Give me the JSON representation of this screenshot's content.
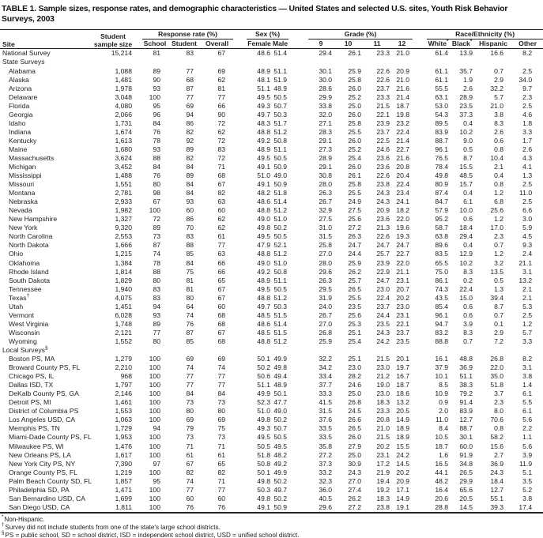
{
  "title": "TABLE 1. Sample sizes, response rates, and demographic characteristics — United States and selected U.S. sites, Youth Risk Behavior Surveys, 2003",
  "table": {
    "site_header": "Site",
    "sample_header": {
      "line1": "Student",
      "line2": "sample size"
    },
    "groups": {
      "response_rate": "Response rate (%)",
      "sex": "Sex (%)",
      "grade": "Grade (%)",
      "race": "Race/Ethnicity (%)"
    },
    "sub_headers": [
      {
        "label": "School"
      },
      {
        "label": "Student"
      },
      {
        "label": "Overall"
      },
      {
        "label": "Female"
      },
      {
        "label": "Male"
      },
      {
        "label": "9"
      },
      {
        "label": "10"
      },
      {
        "label": "11"
      },
      {
        "label": "12"
      },
      {
        "label": "White",
        "marker": "*"
      },
      {
        "label": "Black",
        "marker": "*"
      },
      {
        "label": "Hispanic"
      },
      {
        "label": "Other"
      }
    ],
    "rows": [
      {
        "site": "National Survey",
        "indent": false,
        "values": [
          "15,214",
          "81",
          "83",
          "67",
          "48.6",
          "51.4",
          "29.4",
          "26.1",
          "23.3",
          "21.0",
          "61.4",
          "13.9",
          "16.6",
          "8.2"
        ]
      },
      {
        "site": "State Surveys",
        "section": true
      },
      {
        "site": "Alabama",
        "indent": true,
        "values": [
          "1,088",
          "89",
          "77",
          "69",
          "48.9",
          "51.1",
          "30.1",
          "25.9",
          "22.6",
          "20.9",
          "61.1",
          "35.7",
          "0.7",
          "2.5"
        ]
      },
      {
        "site": "Alaska",
        "indent": true,
        "values": [
          "1,481",
          "90",
          "68",
          "62",
          "48.1",
          "51.9",
          "30.0",
          "25.8",
          "22.6",
          "21.0",
          "61.1",
          "1.9",
          "2.9",
          "34.0"
        ]
      },
      {
        "site": "Arizona",
        "indent": true,
        "values": [
          "1,978",
          "93",
          "87",
          "81",
          "51.1",
          "48.9",
          "28.6",
          "26.0",
          "23.7",
          "21.6",
          "55.5",
          "2.6",
          "32.2",
          "9.7"
        ]
      },
      {
        "site": "Delaware",
        "indent": true,
        "values": [
          "3,048",
          "100",
          "77",
          "77",
          "49.5",
          "50.5",
          "29.9",
          "25.2",
          "23.3",
          "21.4",
          "63.1",
          "28.9",
          "5.7",
          "2.3"
        ]
      },
      {
        "site": "Florida",
        "indent": true,
        "values": [
          "4,080",
          "95",
          "69",
          "66",
          "49.3",
          "50.7",
          "33.8",
          "25.0",
          "21.5",
          "18.7",
          "53.0",
          "23.5",
          "21.0",
          "2.5"
        ]
      },
      {
        "site": "Georgia",
        "indent": true,
        "values": [
          "2,066",
          "96",
          "94",
          "90",
          "49.7",
          "50.3",
          "32.0",
          "26.0",
          "22.1",
          "19.8",
          "54.3",
          "37.3",
          "3.8",
          "4.6"
        ]
      },
      {
        "site": "Idaho",
        "indent": true,
        "values": [
          "1,731",
          "84",
          "86",
          "72",
          "48.3",
          "51.7",
          "27.1",
          "25.8",
          "23.9",
          "23.2",
          "89.5",
          "0.4",
          "8.3",
          "1.8"
        ]
      },
      {
        "site": "Indiana",
        "indent": true,
        "values": [
          "1,674",
          "76",
          "82",
          "62",
          "48.8",
          "51.2",
          "28.3",
          "25.5",
          "23.7",
          "22.4",
          "83.9",
          "10.2",
          "2.6",
          "3.3"
        ]
      },
      {
        "site": "Kentucky",
        "indent": true,
        "values": [
          "1,613",
          "78",
          "92",
          "72",
          "49.2",
          "50.8",
          "29.1",
          "26.0",
          "22.5",
          "21.4",
          "88.7",
          "9.0",
          "0.6",
          "1.7"
        ]
      },
      {
        "site": "Maine",
        "indent": true,
        "values": [
          "1,680",
          "93",
          "89",
          "83",
          "48.9",
          "51.1",
          "27.3",
          "25.2",
          "24.6",
          "22.7",
          "96.1",
          "0.5",
          "0.8",
          "2.6"
        ]
      },
      {
        "site": "Massachusetts",
        "indent": true,
        "values": [
          "3,624",
          "88",
          "82",
          "72",
          "49.5",
          "50.5",
          "28.9",
          "25.4",
          "23.6",
          "21.6",
          "76.5",
          "8.7",
          "10.4",
          "4.3"
        ]
      },
      {
        "site": "Michigan",
        "indent": true,
        "values": [
          "3,452",
          "84",
          "84",
          "71",
          "49.1",
          "50.9",
          "29.1",
          "26.0",
          "23.6",
          "20.8",
          "78.4",
          "15.5",
          "2.1",
          "4.1"
        ]
      },
      {
        "site": "Mississippi",
        "indent": true,
        "values": [
          "1,488",
          "76",
          "89",
          "68",
          "51.0",
          "49.0",
          "30.8",
          "26.1",
          "22.6",
          "20.4",
          "49.8",
          "48.5",
          "0.4",
          "1.3"
        ]
      },
      {
        "site": "Missouri",
        "indent": true,
        "values": [
          "1,551",
          "80",
          "84",
          "67",
          "49.1",
          "50.9",
          "28.0",
          "25.8",
          "23.8",
          "22.4",
          "80.9",
          "15.7",
          "0.8",
          "2.5"
        ]
      },
      {
        "site": "Montana",
        "indent": true,
        "values": [
          "2,781",
          "98",
          "84",
          "82",
          "48.2",
          "51.8",
          "26.3",
          "25.5",
          "24.3",
          "23.4",
          "87.4",
          "0.4",
          "1.2",
          "11.0"
        ]
      },
      {
        "site": "Nebraska",
        "indent": true,
        "values": [
          "2,933",
          "67",
          "93",
          "63",
          "48.6",
          "51.4",
          "26.7",
          "24.9",
          "24.3",
          "24.1",
          "84.7",
          "6.1",
          "6.8",
          "2.5"
        ]
      },
      {
        "site": "Nevada",
        "indent": true,
        "values": [
          "1,982",
          "100",
          "60",
          "60",
          "48.8",
          "51.2",
          "32.9",
          "27.5",
          "20.9",
          "18.2",
          "57.9",
          "10.0",
          "25.6",
          "6.6"
        ]
      },
      {
        "site": "New Hampshire",
        "indent": true,
        "values": [
          "1,327",
          "72",
          "86",
          "62",
          "49.0",
          "51.0",
          "27.5",
          "25.6",
          "23.6",
          "22.0",
          "95.2",
          "0.6",
          "1.2",
          "3.0"
        ]
      },
      {
        "site": "New York",
        "indent": true,
        "values": [
          "9,320",
          "89",
          "70",
          "62",
          "49.8",
          "50.2",
          "31.0",
          "27.2",
          "21.3",
          "19.6",
          "58.7",
          "18.4",
          "17.0",
          "5.9"
        ]
      },
      {
        "site": "North Carolina",
        "indent": true,
        "values": [
          "2,553",
          "73",
          "83",
          "61",
          "49.5",
          "50.5",
          "31.5",
          "26.3",
          "22.6",
          "19.3",
          "63.8",
          "29.4",
          "2.3",
          "4.5"
        ]
      },
      {
        "site": "North Dakota",
        "indent": true,
        "values": [
          "1,666",
          "87",
          "88",
          "77",
          "47.9",
          "52.1",
          "25.8",
          "24.7",
          "24.7",
          "24.7",
          "89.6",
          "0.4",
          "0.7",
          "9.3"
        ]
      },
      {
        "site": "Ohio",
        "indent": true,
        "values": [
          "1,215",
          "74",
          "85",
          "63",
          "48.8",
          "51.2",
          "27.0",
          "24.4",
          "25.7",
          "22.7",
          "83.5",
          "12.9",
          "1.2",
          "2.4"
        ]
      },
      {
        "site": "Oklahoma",
        "indent": true,
        "values": [
          "1,384",
          "78",
          "84",
          "66",
          "49.0",
          "51.0",
          "28.0",
          "25.9",
          "23.9",
          "22.0",
          "65.5",
          "10.2",
          "3.2",
          "21.1"
        ]
      },
      {
        "site": "Rhode Island",
        "indent": true,
        "values": [
          "1,814",
          "88",
          "75",
          "66",
          "49.2",
          "50.8",
          "29.6",
          "26.2",
          "22.9",
          "21.1",
          "75.0",
          "8.3",
          "13.5",
          "3.1"
        ]
      },
      {
        "site": "South Dakota",
        "indent": true,
        "values": [
          "1,829",
          "80",
          "81",
          "65",
          "48.9",
          "51.1",
          "26.3",
          "25.7",
          "24.7",
          "23.1",
          "86.1",
          "0.2",
          "0.5",
          "13.2"
        ]
      },
      {
        "site": "Tennessee",
        "indent": true,
        "values": [
          "1,940",
          "83",
          "81",
          "67",
          "49.5",
          "50.5",
          "29.5",
          "26.5",
          "23.0",
          "20.7",
          "74.3",
          "22.4",
          "1.3",
          "2.1"
        ]
      },
      {
        "site": "Texas",
        "marker": "†",
        "indent": true,
        "values": [
          "4,075",
          "83",
          "80",
          "67",
          "48.8",
          "51.2",
          "31.9",
          "25.5",
          "22.4",
          "20.2",
          "43.5",
          "15.0",
          "39.4",
          "2.1"
        ]
      },
      {
        "site": "Utah",
        "indent": true,
        "values": [
          "1,451",
          "94",
          "64",
          "60",
          "49.7",
          "50.3",
          "24.0",
          "23.5",
          "23.7",
          "23.0",
          "85.4",
          "0.6",
          "8.7",
          "5.3"
        ]
      },
      {
        "site": "Vermont",
        "indent": true,
        "values": [
          "6,028",
          "93",
          "74",
          "68",
          "48.5",
          "51.5",
          "26.7",
          "25.6",
          "24.4",
          "23.1",
          "96.1",
          "0.6",
          "0.7",
          "2.5"
        ]
      },
      {
        "site": "West Virginia",
        "indent": true,
        "values": [
          "1,748",
          "89",
          "76",
          "68",
          "48.6",
          "51.4",
          "27.0",
          "25.3",
          "23.5",
          "22.1",
          "94.7",
          "3.9",
          "0.1",
          "1.2"
        ]
      },
      {
        "site": "Wisconsin",
        "indent": true,
        "values": [
          "2,121",
          "77",
          "87",
          "67",
          "48.5",
          "51.5",
          "26.8",
          "25.1",
          "24.3",
          "23.7",
          "83.2",
          "8.3",
          "2.9",
          "5.7"
        ]
      },
      {
        "site": "Wyoming",
        "indent": true,
        "values": [
          "1,552",
          "80",
          "85",
          "68",
          "48.8",
          "51.2",
          "25.9",
          "25.4",
          "24.2",
          "23.5",
          "88.8",
          "0.7",
          "7.2",
          "3.3"
        ]
      },
      {
        "site": "Local Surveys",
        "marker": "§",
        "section": true
      },
      {
        "site": "Boston PS, MA",
        "indent": true,
        "values": [
          "1,279",
          "100",
          "69",
          "69",
          "50.1",
          "49.9",
          "32.2",
          "25.1",
          "21.5",
          "20.1",
          "16.1",
          "48.8",
          "26.8",
          "8.2"
        ]
      },
      {
        "site": "Broward County PS, FL",
        "indent": true,
        "values": [
          "2,210",
          "100",
          "74",
          "74",
          "50.2",
          "49.8",
          "34.2",
          "23.0",
          "23.0",
          "19.7",
          "37.9",
          "36.9",
          "22.0",
          "3.1"
        ]
      },
      {
        "site": "Chicago PS, IL",
        "indent": true,
        "values": [
          "968",
          "100",
          "77",
          "77",
          "50.6",
          "49.4",
          "33.4",
          "28.2",
          "21.2",
          "16.7",
          "10.1",
          "51.1",
          "35.0",
          "3.8"
        ]
      },
      {
        "site": "Dallas ISD, TX",
        "indent": true,
        "values": [
          "1,797",
          "100",
          "77",
          "77",
          "51.1",
          "48.9",
          "37.7",
          "24.6",
          "19.0",
          "18.7",
          "8.5",
          "38.3",
          "51.8",
          "1.4"
        ]
      },
      {
        "site": "DeKalb County PS, GA",
        "indent": true,
        "values": [
          "2,146",
          "100",
          "84",
          "84",
          "49.9",
          "50.1",
          "33.3",
          "25.0",
          "23.0",
          "18.6",
          "10.9",
          "79.2",
          "3.7",
          "6.1"
        ]
      },
      {
        "site": "Detroit PS, MI",
        "indent": true,
        "values": [
          "1,461",
          "100",
          "73",
          "73",
          "52.3",
          "47.7",
          "41.5",
          "26.8",
          "18.3",
          "13.2",
          "0.9",
          "91.4",
          "2.3",
          "5.5"
        ]
      },
      {
        "site": "District of Columbia PS",
        "indent": true,
        "values": [
          "1,553",
          "100",
          "80",
          "80",
          "51.0",
          "49.0",
          "31.5",
          "24.5",
          "23.3",
          "20.5",
          "2.0",
          "83.9",
          "8.0",
          "6.1"
        ]
      },
      {
        "site": "Los Angeles USD, CA",
        "indent": true,
        "values": [
          "1,063",
          "100",
          "69",
          "69",
          "49.8",
          "50.2",
          "37.6",
          "26.6",
          "20.8",
          "14.9",
          "11.0",
          "12.7",
          "70.6",
          "5.6"
        ]
      },
      {
        "site": "Memphis PS, TN",
        "indent": true,
        "values": [
          "1,729",
          "94",
          "79",
          "75",
          "49.3",
          "50.7",
          "33.5",
          "26.5",
          "21.0",
          "18.9",
          "8.4",
          "88.7",
          "0.8",
          "2.2"
        ]
      },
      {
        "site": "Miami-Dade County PS, FL",
        "indent": true,
        "values": [
          "1,953",
          "100",
          "73",
          "73",
          "49.5",
          "50.5",
          "33.5",
          "26.0",
          "21.5",
          "18.9",
          "10.5",
          "30.1",
          "58.2",
          "1.1"
        ]
      },
      {
        "site": "Milwaukee PS, WI",
        "indent": true,
        "values": [
          "1,476",
          "100",
          "71",
          "71",
          "50.5",
          "49.5",
          "35.8",
          "27.9",
          "20.2",
          "15.5",
          "18.7",
          "60.0",
          "15.6",
          "5.6"
        ]
      },
      {
        "site": "New Orleans PS, LA",
        "indent": true,
        "values": [
          "1,617",
          "100",
          "61",
          "61",
          "51.8",
          "48.2",
          "27.2",
          "25.0",
          "23.1",
          "24.2",
          "1.6",
          "91.9",
          "2.7",
          "3.9"
        ]
      },
      {
        "site": "New York City PS, NY",
        "indent": true,
        "values": [
          "7,390",
          "97",
          "67",
          "65",
          "50.8",
          "49.2",
          "37.3",
          "30.9",
          "17.2",
          "14.5",
          "16.5",
          "34.8",
          "36.9",
          "11.9"
        ]
      },
      {
        "site": "Orange County PS, FL",
        "indent": true,
        "values": [
          "1,219",
          "100",
          "82",
          "82",
          "50.1",
          "49.9",
          "33.2",
          "24.3",
          "21.9",
          "20.2",
          "44.1",
          "26.5",
          "24.3",
          "5.1"
        ]
      },
      {
        "site": "Palm Beach County SD, FL",
        "indent": true,
        "values": [
          "1,857",
          "95",
          "74",
          "71",
          "49.8",
          "50.2",
          "32.3",
          "27.0",
          "19.4",
          "20.9",
          "48.2",
          "29.9",
          "18.4",
          "3.5"
        ]
      },
      {
        "site": "Philadelphia SD, PA",
        "indent": true,
        "values": [
          "1,471",
          "100",
          "77",
          "77",
          "50.3",
          "49.7",
          "36.0",
          "27.4",
          "19.2",
          "17.1",
          "16.4",
          "65.6",
          "12.7",
          "5.2"
        ]
      },
      {
        "site": "San Bernardino USD, CA",
        "indent": true,
        "values": [
          "1,699",
          "100",
          "60",
          "60",
          "49.8",
          "50.2",
          "40.5",
          "26.2",
          "18.3",
          "14.9",
          "20.6",
          "20.5",
          "55.1",
          "3.8"
        ]
      },
      {
        "site": "San Diego USD, CA",
        "indent": true,
        "values": [
          "1,811",
          "100",
          "76",
          "76",
          "49.1",
          "50.9",
          "29.6",
          "27.2",
          "23.8",
          "19.1",
          "28.8",
          "14.5",
          "39.3",
          "17.4"
        ]
      }
    ]
  },
  "footnotes": [
    {
      "marker": "*",
      "text": "Non-Hispanic."
    },
    {
      "marker": "†",
      "text": "Survey did not include students from one of the state's large school districts."
    },
    {
      "marker": "§",
      "text": "PS = public school, SD = school district, ISD = independent school district, USD = unified school district."
    }
  ]
}
